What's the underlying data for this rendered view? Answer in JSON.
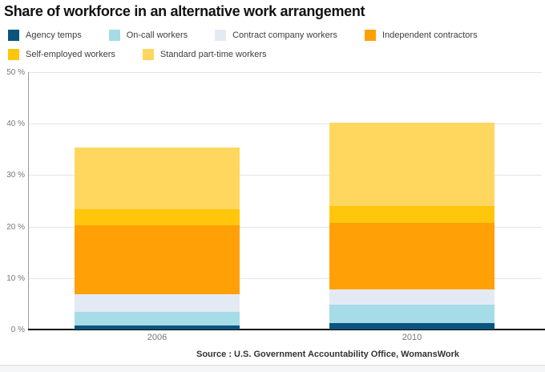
{
  "title": "Share of workforce in an alternative work arrangement",
  "source_text": "Source : U.S. Government Accountability Office, WomansWork",
  "chart_data": {
    "type": "bar",
    "stacked": true,
    "title": "Share of workforce in an alternative work arrangement",
    "categories": [
      "2006",
      "2010"
    ],
    "series": [
      {
        "name": "Agency temps",
        "color": "#0b557d",
        "values": [
          0.8,
          1.3
        ]
      },
      {
        "name": "On-call workers",
        "color": "#a6dbe8",
        "values": [
          2.6,
          3.5
        ]
      },
      {
        "name": "Contract company workers",
        "color": "#e4eaf4",
        "values": [
          3.4,
          3.0
        ]
      },
      {
        "name": "Independent contractors",
        "color": "#ffa007",
        "values": [
          13.5,
          12.9
        ]
      },
      {
        "name": "Self-employed workers",
        "color": "#ffc60b",
        "values": [
          3.0,
          3.3
        ]
      },
      {
        "name": "Standard part-time workers",
        "color": "#ffd75e",
        "values": [
          12.0,
          16.2
        ]
      }
    ],
    "totals": [
      35.3,
      40.2
    ],
    "xlabel": "",
    "ylabel": "",
    "ylim": [
      0,
      50
    ],
    "ytick_step": 10,
    "ytick_labels": [
      "0 %",
      "10 %",
      "20 %",
      "30 %",
      "40 %",
      "50 %"
    ],
    "grid": true,
    "legend_position": "top"
  }
}
